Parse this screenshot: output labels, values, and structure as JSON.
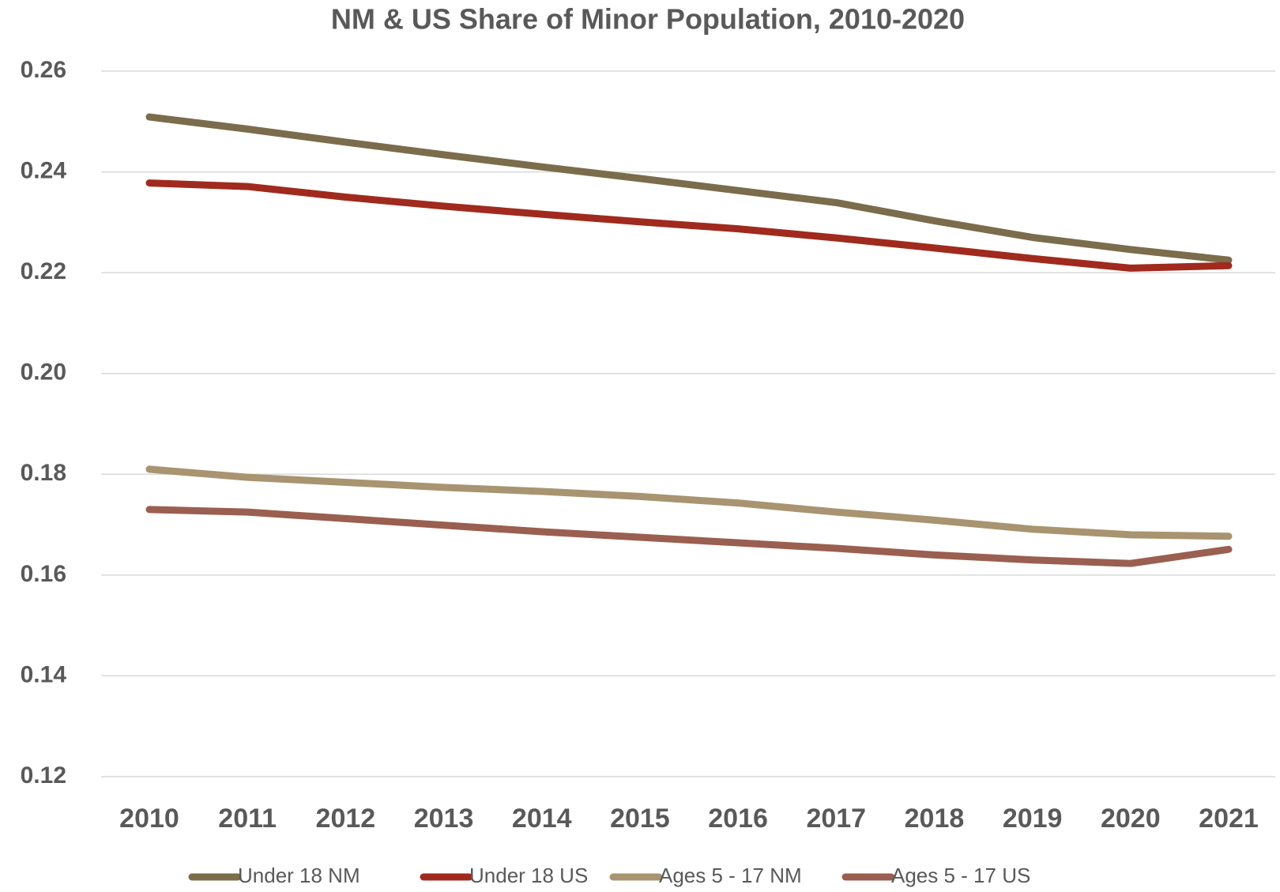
{
  "chart_data": {
    "type": "line",
    "title": "NM & US Share of Minor Population, 2010-2020",
    "categories": [
      "2010",
      "2011",
      "2012",
      "2013",
      "2014",
      "2015",
      "2016",
      "2017",
      "2018",
      "2019",
      "2020",
      "2021"
    ],
    "series": [
      {
        "name": "Under 18 NM",
        "color": "#7b6c4c",
        "values": [
          0.2509,
          0.2485,
          0.2459,
          0.2434,
          0.241,
          0.2387,
          0.2363,
          0.2339,
          0.2303,
          0.227,
          0.2246,
          0.2225
        ]
      },
      {
        "name": "Under 18 US",
        "color": "#a02a1e",
        "values": [
          0.2378,
          0.2371,
          0.235,
          0.2332,
          0.2316,
          0.2301,
          0.2287,
          0.2269,
          0.2249,
          0.2228,
          0.2209,
          0.2214
        ]
      },
      {
        "name": "Ages 5 - 17 NM",
        "color": "#a89470",
        "values": [
          0.181,
          0.1794,
          0.1784,
          0.1774,
          0.1766,
          0.1756,
          0.1743,
          0.1725,
          0.1709,
          0.1691,
          0.168,
          0.1677
        ]
      },
      {
        "name": "Ages 5 - 17 US",
        "color": "#9a5f50",
        "values": [
          0.173,
          0.1725,
          0.1712,
          0.1699,
          0.1686,
          0.1675,
          0.1664,
          0.1653,
          0.164,
          0.163,
          0.1623,
          0.1651
        ]
      }
    ],
    "ylim": [
      0.12,
      0.26
    ],
    "yticks": [
      0.12,
      0.14,
      0.16,
      0.18,
      {
        "value": 0.2,
        "label": "0.20"
      },
      0.22,
      0.24,
      0.26
    ],
    "grid": true,
    "legend": "bottom"
  }
}
